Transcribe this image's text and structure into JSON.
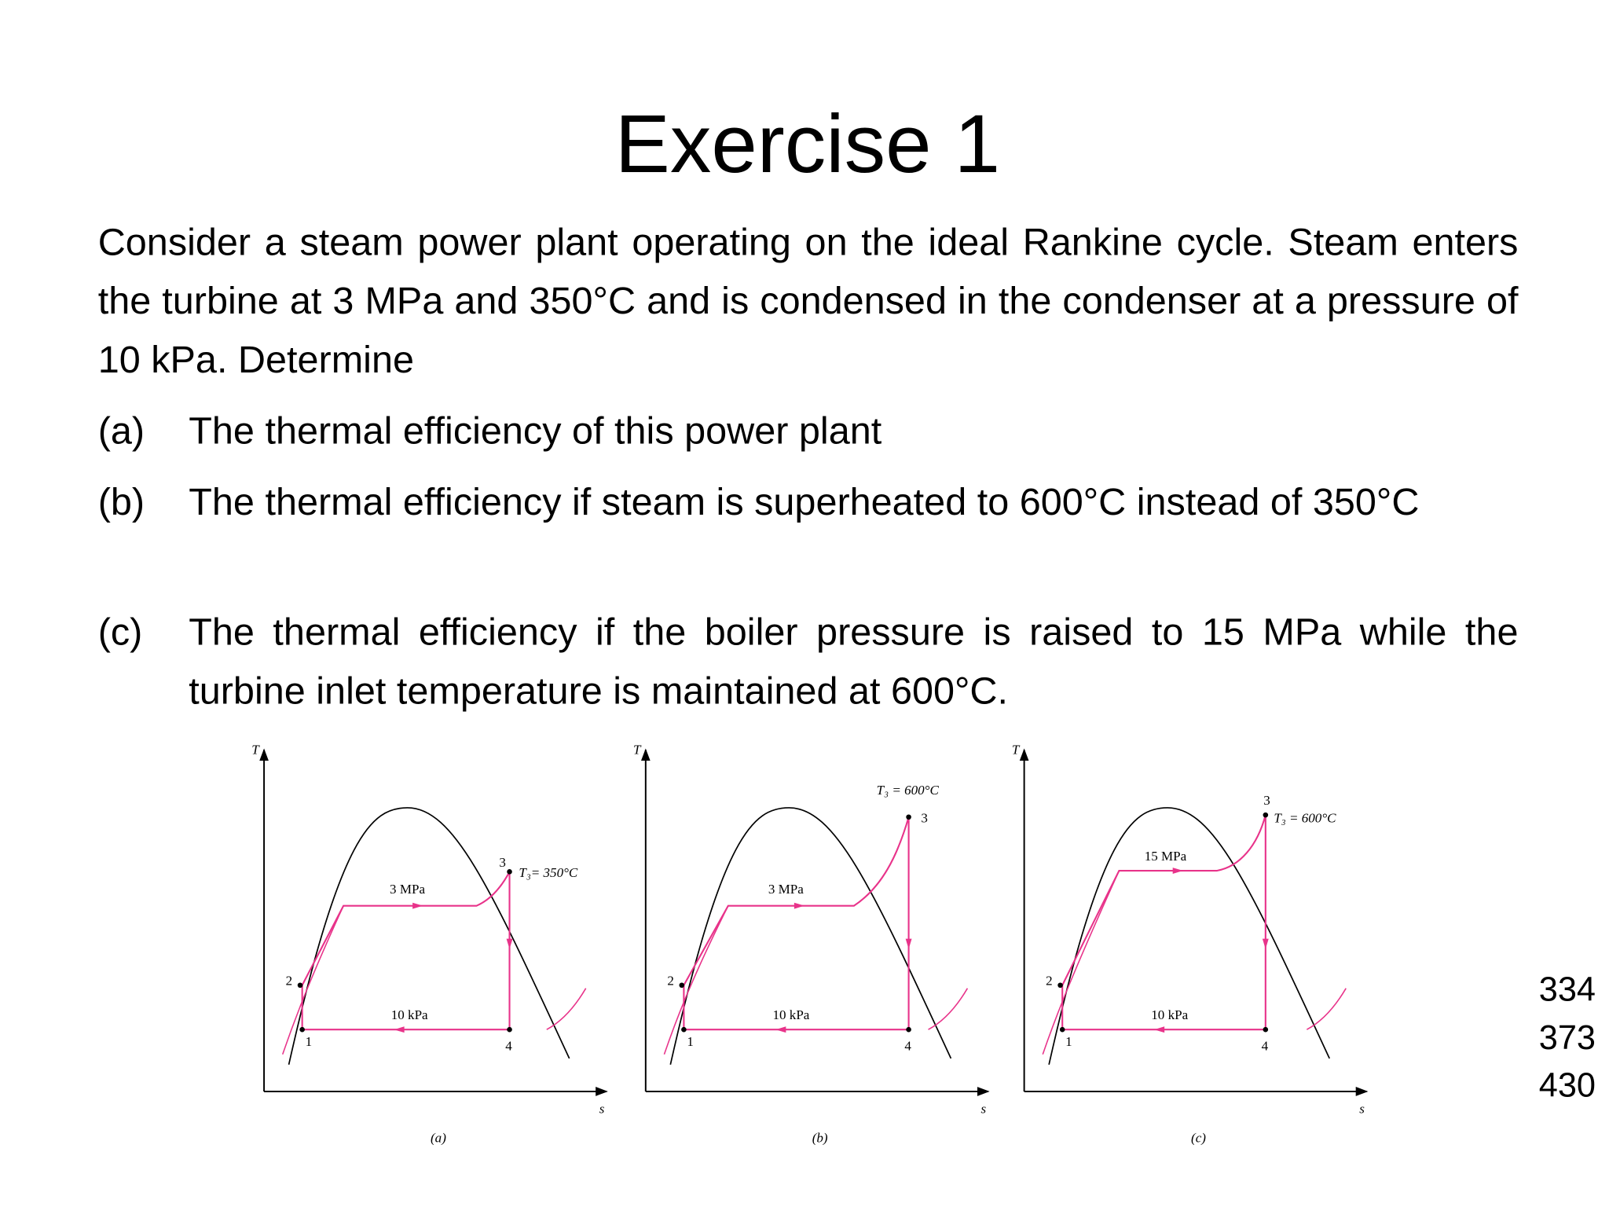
{
  "title": "Exercise 1",
  "intro": "Consider a steam power plant operating on the ideal Rankine cycle. Steam enters the turbine at 3 MPa and 350°C and is condensed in the condenser at a pressure of 10 kPa. Determine",
  "items": [
    {
      "label": "(a)",
      "text": "The thermal efficiency of this power plant"
    },
    {
      "label": "(b)",
      "text": "The thermal efficiency if steam is superheated to 600°C instead of 350°C"
    },
    {
      "label": "(c)",
      "text": "The thermal efficiency if the boiler pressure is raised to 15 MPa while the turbine inlet temperature is maintained at 600°C."
    }
  ],
  "diagrams": [
    {
      "y_axis": "T",
      "x_axis": "s",
      "high_pressure": "3 MPa",
      "low_pressure": "10 kPa",
      "turbine_inlet": "T₃= 350°C",
      "points": [
        "1",
        "2",
        "3",
        "4"
      ],
      "caption": "(a)"
    },
    {
      "y_axis": "T",
      "x_axis": "s",
      "high_pressure": "3 MPa",
      "low_pressure": "10 kPa",
      "turbine_inlet": "T₃ = 600°C",
      "points": [
        "1",
        "2",
        "3",
        "4"
      ],
      "caption": "(b)"
    },
    {
      "y_axis": "T",
      "x_axis": "s",
      "high_pressure": "15 MPa",
      "low_pressure": "10 kPa",
      "turbine_inlet": "T₃ = 600°C",
      "points": [
        "1",
        "2",
        "3",
        "4"
      ],
      "caption": "(c)"
    }
  ],
  "side_numbers": [
    "334",
    "373",
    "430"
  ]
}
